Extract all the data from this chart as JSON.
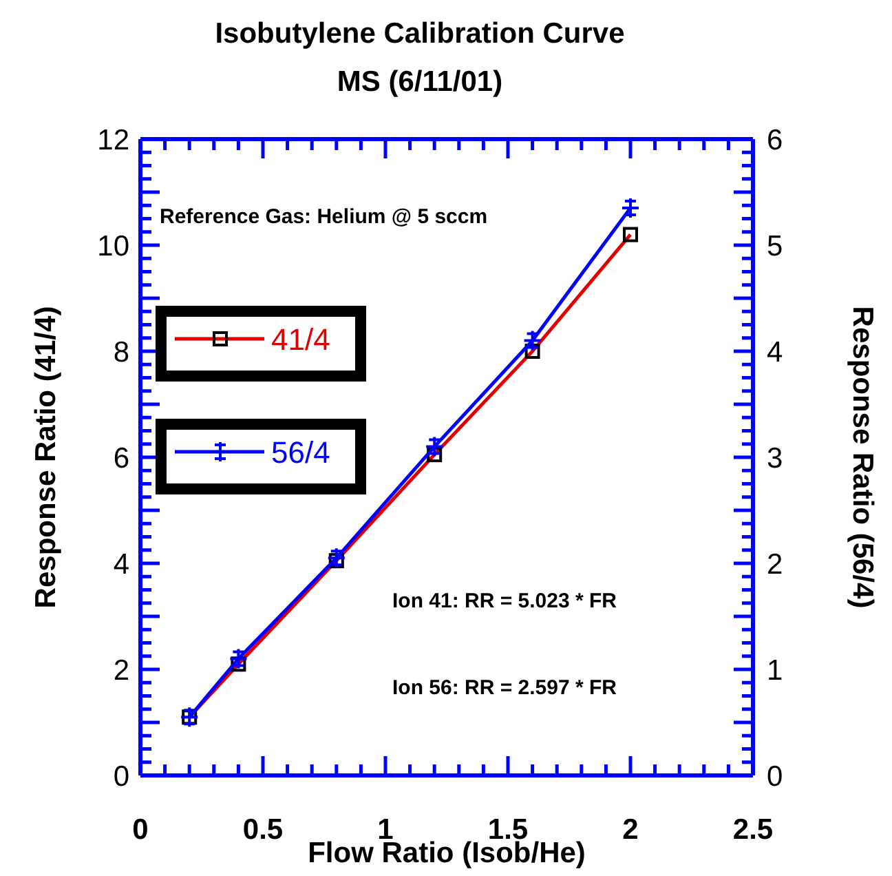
{
  "chart_data": {
    "type": "line",
    "title": "Isobutylene Calibration Curve",
    "subtitle": "MS (6/11/01)",
    "xlabel": "Flow Ratio (Isob/He)",
    "ylabel": "Response Ratio (41/4)",
    "y2label": "Response Ratio (56/4)",
    "x": [
      0.2,
      0.4,
      0.8,
      1.2,
      1.6,
      2.0
    ],
    "series": [
      {
        "name": "41/4",
        "color": "#e00000",
        "values": [
          1.1,
          2.1,
          4.05,
          6.05,
          8.0,
          10.2
        ],
        "marker": "square"
      },
      {
        "name": "56/4",
        "color": "#0000ff",
        "values": [
          0.55,
          1.1,
          2.05,
          3.1,
          4.1,
          5.35
        ],
        "axis": "y2",
        "marker": "cross"
      }
    ],
    "xlim": [
      0,
      2.5
    ],
    "xticks": [
      0,
      0.5,
      1,
      1.5,
      2,
      2.5
    ],
    "ylim": [
      0,
      12
    ],
    "yticks": [
      0,
      2,
      4,
      6,
      8,
      10,
      12
    ],
    "y2lim": [
      0,
      6
    ],
    "y2ticks": [
      0,
      1,
      2,
      3,
      4,
      5,
      6
    ],
    "legend": "left",
    "grid": false,
    "annotations": [
      "Reference Gas: Helium @ 5 sccm",
      "Ion 41: RR = 5.023 * FR",
      "Ion 56:  RR = 2.597 * FR"
    ]
  }
}
